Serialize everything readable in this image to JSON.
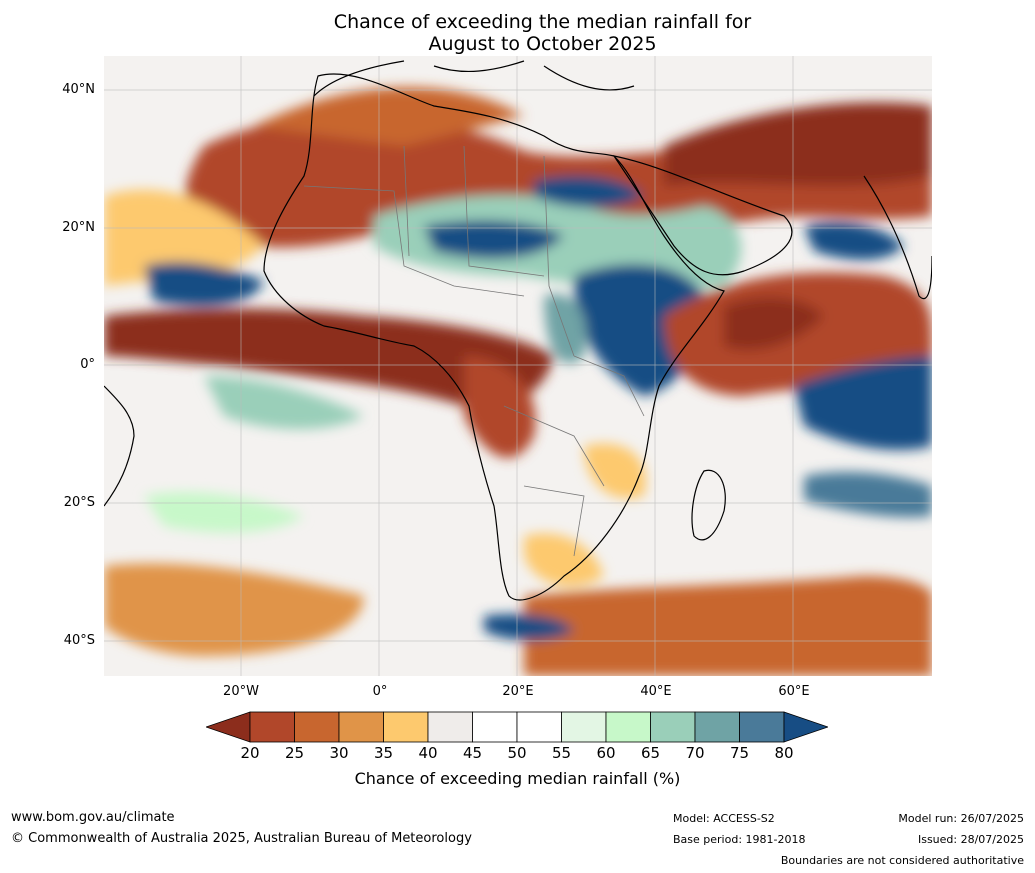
{
  "title": {
    "line1": "Chance of exceeding the median rainfall for",
    "line2": "August to October 2025"
  },
  "map": {
    "latitude_labels": [
      "40°N",
      "20°N",
      "0°",
      "20°S",
      "40°S"
    ],
    "longitude_labels": [
      "20°W",
      "0°",
      "20°E",
      "40°E",
      "60°E"
    ]
  },
  "colorbar": {
    "ticks": [
      "20",
      "25",
      "30",
      "35",
      "40",
      "45",
      "50",
      "55",
      "60",
      "65",
      "70",
      "75",
      "80"
    ],
    "colors": [
      "#8c2d1c",
      "#b1472a",
      "#c8662f",
      "#e09448",
      "#fdc96e",
      "#efecea",
      "#ffffff",
      "#ffffff",
      "#e3f6e4",
      "#c7f8c9",
      "#9acfb9",
      "#6fa3a5",
      "#4a7a99",
      "#174d84"
    ],
    "label": "Chance of exceeding median rainfall (%)"
  },
  "footer": {
    "site": "www.bom.gov.au/climate",
    "copyright": "© Commonwealth of Australia 2025, Australian Bureau of Meteorology",
    "model": "Model: ACCESS-S2",
    "base_period": "Base period: 1981-2018",
    "model_run": "Model run: 26/07/2025",
    "issued": "Issued: 28/07/2025",
    "disclaimer": "Boundaries are not considered authoritative"
  }
}
